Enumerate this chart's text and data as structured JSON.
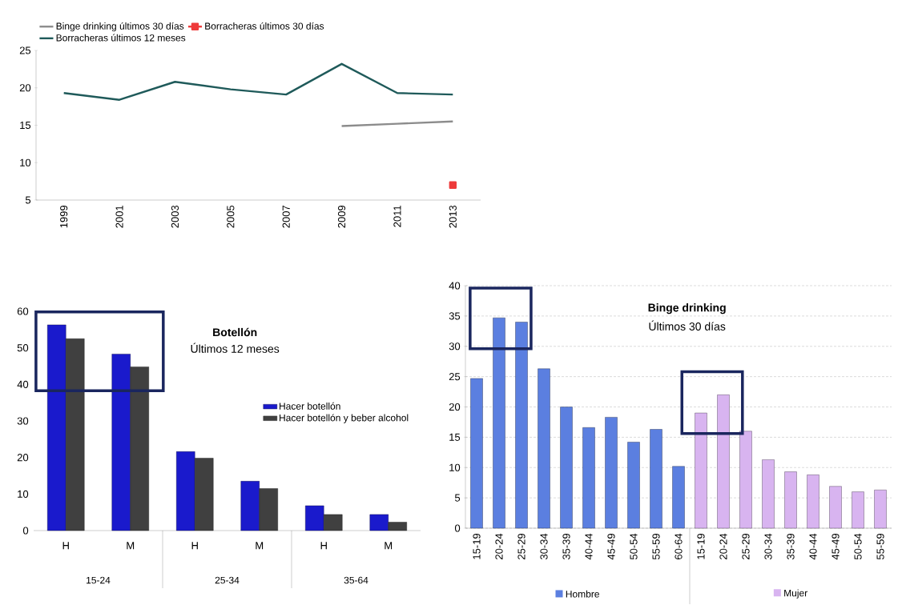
{
  "chart_data": [
    {
      "type": "line",
      "categories": [
        "1999",
        "2001",
        "2003",
        "2005",
        "2007",
        "2009",
        "2011",
        "2013"
      ],
      "series": [
        {
          "name": "Binge drinking últimos 30 días",
          "color": "#8c8c8c",
          "values": [
            null,
            null,
            null,
            null,
            null,
            14.9,
            15.2,
            15.5
          ]
        },
        {
          "name": "Borracheras últimos 30 días",
          "color": "#ee3b3b",
          "marker": "square",
          "values": [
            null,
            null,
            null,
            null,
            null,
            null,
            null,
            7.0
          ]
        },
        {
          "name": "Borracheras últimos 12 meses",
          "color": "#1f5a5a",
          "values": [
            19.3,
            18.4,
            20.8,
            19.8,
            19.1,
            23.2,
            19.3,
            19.1
          ]
        }
      ],
      "ylim": [
        5,
        25
      ],
      "yticks": [
        5,
        10,
        15,
        20,
        25
      ],
      "legend": "top left"
    },
    {
      "type": "bar",
      "title": "Botellón",
      "subtitle": "Últimos 12 meses",
      "categories": [
        "H",
        "M",
        "H",
        "M",
        "H",
        "M"
      ],
      "annotations": [
        "15-24",
        "25-34",
        "35-64"
      ],
      "series": [
        {
          "name": "Hacer botellón",
          "color": "#1a1acc",
          "values": [
            56.3,
            48.3,
            21.6,
            13.5,
            6.8,
            4.4
          ]
        },
        {
          "name": "Hacer botellón y beber alcohol",
          "color": "#404040",
          "values": [
            52.5,
            44.8,
            19.8,
            11.5,
            4.4,
            2.3
          ]
        }
      ],
      "ylim": [
        0,
        60
      ],
      "yticks": [
        0,
        10,
        20,
        30,
        40,
        50,
        60
      ],
      "legend": "right"
    },
    {
      "type": "bar",
      "title": "Binge drinking",
      "subtitle": "Últimos 30 días",
      "categories": [
        "15-19",
        "20-24",
        "25-29",
        "30-34",
        "35-39",
        "40-44",
        "45-49",
        "50-54",
        "55-59",
        "60-64",
        "15-19",
        "20-24",
        "25-29",
        "30-34",
        "35-39",
        "40-44",
        "45-49",
        "50-54",
        "55-59"
      ],
      "series": [
        {
          "name": "Hombre",
          "color": "#5b7fe0",
          "values": [
            24.7,
            34.7,
            34.0,
            26.3,
            20.0,
            16.6,
            18.3,
            14.2,
            16.3,
            10.2,
            null,
            null,
            null,
            null,
            null,
            null,
            null,
            null,
            null
          ]
        },
        {
          "name": "Mujer",
          "color": "#d8b4f0",
          "values": [
            null,
            null,
            null,
            null,
            null,
            null,
            null,
            null,
            null,
            null,
            19.0,
            22.0,
            16.0,
            11.3,
            9.3,
            8.8,
            6.9,
            6.0,
            6.3
          ]
        }
      ],
      "ylim": [
        0,
        40
      ],
      "yticks": [
        0,
        5,
        10,
        15,
        20,
        25,
        30,
        35,
        40
      ],
      "grid": "y",
      "legend": "bottom"
    }
  ]
}
